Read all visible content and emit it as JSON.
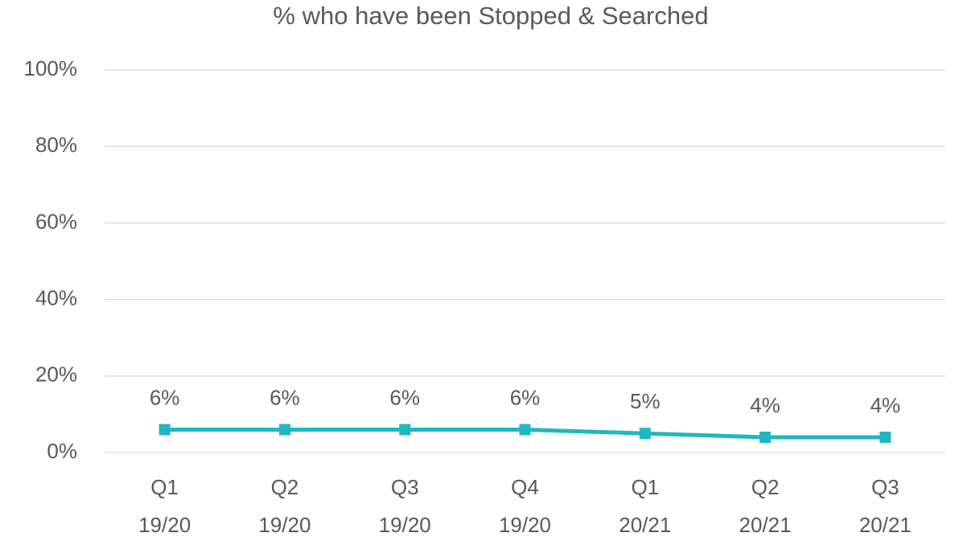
{
  "chart_data": {
    "type": "line",
    "title": "% who have been Stopped & Searched",
    "categories": [
      "Q1 19/20",
      "Q2 19/20",
      "Q3 19/20",
      "Q4 19/20",
      "Q1 20/21",
      "Q2 20/21",
      "Q3 20/21"
    ],
    "series": [
      {
        "color": "#1fb8c0",
        "values": [
          6,
          6,
          6,
          6,
          5,
          4,
          4
        ],
        "value_labels": [
          "6%",
          "6%",
          "6%",
          "6%",
          "5%",
          "4%",
          "4%"
        ]
      }
    ],
    "ylim": [
      0,
      100
    ],
    "yticks": [
      {
        "value": 0,
        "label": "0%"
      },
      {
        "value": 20,
        "label": "20%"
      },
      {
        "value": 40,
        "label": "40%"
      },
      {
        "value": 60,
        "label": "60%"
      },
      {
        "value": 80,
        "label": "80%"
      },
      {
        "value": 100,
        "label": "100%"
      }
    ],
    "grid": true
  }
}
